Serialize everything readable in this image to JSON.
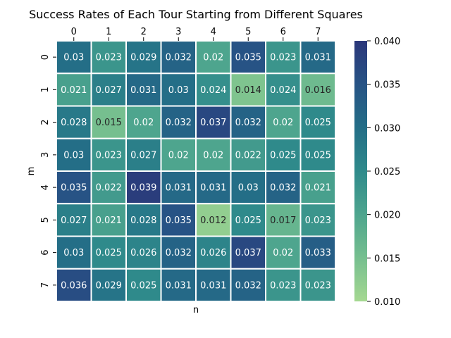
{
  "chart_data": {
    "type": "heatmap",
    "title": "Success Rates of Each Tour Starting from Different Squares",
    "xlabel": "n",
    "ylabel": "m",
    "x_tick_labels": [
      "0",
      "1",
      "2",
      "3",
      "4",
      "5",
      "6",
      "7"
    ],
    "y_tick_labels": [
      "0",
      "1",
      "2",
      "3",
      "4",
      "5",
      "6",
      "7"
    ],
    "values": [
      [
        0.03,
        0.023,
        0.029,
        0.032,
        0.02,
        0.035,
        0.023,
        0.031
      ],
      [
        0.021,
        0.027,
        0.031,
        0.03,
        0.024,
        0.014,
        0.024,
        0.016
      ],
      [
        0.028,
        0.015,
        0.02,
        0.032,
        0.037,
        0.032,
        0.02,
        0.025
      ],
      [
        0.03,
        0.023,
        0.027,
        0.02,
        0.02,
        0.022,
        0.025,
        0.025
      ],
      [
        0.035,
        0.022,
        0.039,
        0.031,
        0.031,
        0.03,
        0.032,
        0.021
      ],
      [
        0.027,
        0.021,
        0.028,
        0.035,
        0.012,
        0.025,
        0.017,
        0.023
      ],
      [
        0.03,
        0.025,
        0.026,
        0.032,
        0.026,
        0.037,
        0.02,
        0.033
      ],
      [
        0.036,
        0.029,
        0.025,
        0.031,
        0.031,
        0.032,
        0.023,
        0.023
      ]
    ],
    "cell_labels": [
      [
        "0.03",
        "0.023",
        "0.029",
        "0.032",
        "0.02",
        "0.035",
        "0.023",
        "0.031"
      ],
      [
        "0.021",
        "0.027",
        "0.031",
        "0.03",
        "0.024",
        "0.014",
        "0.024",
        "0.016"
      ],
      [
        "0.028",
        "0.015",
        "0.02",
        "0.032",
        "0.037",
        "0.032",
        "0.02",
        "0.025"
      ],
      [
        "0.03",
        "0.023",
        "0.027",
        "0.02",
        "0.02",
        "0.022",
        "0.025",
        "0.025"
      ],
      [
        "0.035",
        "0.022",
        "0.039",
        "0.031",
        "0.031",
        "0.03",
        "0.032",
        "0.021"
      ],
      [
        "0.027",
        "0.021",
        "0.028",
        "0.035",
        "0.012",
        "0.025",
        "0.017",
        "0.023"
      ],
      [
        "0.03",
        "0.025",
        "0.026",
        "0.032",
        "0.026",
        "0.037",
        "0.02",
        "0.033"
      ],
      [
        "0.036",
        "0.029",
        "0.025",
        "0.031",
        "0.031",
        "0.032",
        "0.023",
        "0.023"
      ]
    ],
    "x_axis_position": "top",
    "grid": false,
    "colorbar": {
      "vmin": 0.01,
      "vmax": 0.04,
      "tick_values": [
        0.01,
        0.015,
        0.02,
        0.025,
        0.03,
        0.035,
        0.04
      ],
      "tick_labels": [
        "0.010",
        "0.015",
        "0.020",
        "0.025",
        "0.030",
        "0.035",
        "0.040"
      ],
      "colormap": [
        "#a5d891",
        "#76bf8f",
        "#4ea58e",
        "#2f8a8b",
        "#246e87",
        "#275385",
        "#2b377a"
      ]
    }
  }
}
